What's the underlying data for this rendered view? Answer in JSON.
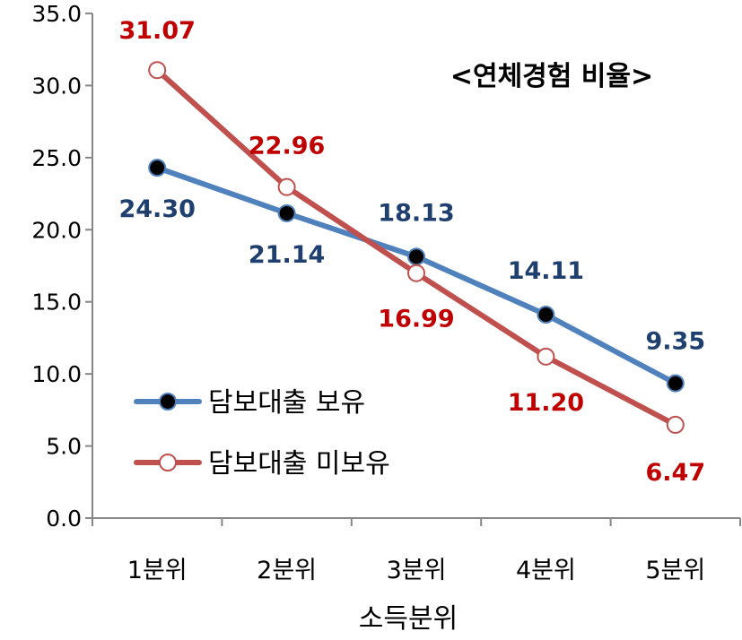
{
  "chart_data": {
    "type": "line",
    "categories": [
      "1분위",
      "2분위",
      "3분위",
      "4분위",
      "5분위"
    ],
    "xlabel": "소득분위",
    "ylabel": "",
    "ylim": [
      0,
      35
    ],
    "y_ticks": [
      "0.0",
      "5.0",
      "10.0",
      "15.0",
      "20.0",
      "25.0",
      "30.0",
      "35.0"
    ],
    "grid": false,
    "annotation": "<연체경험 비율>",
    "legend_position": "bottom-left",
    "series": [
      {
        "name": "담보대출 보유",
        "values": [
          24.3,
          21.14,
          18.13,
          14.11,
          9.35
        ],
        "labels": [
          "24.30",
          "21.14",
          "18.13",
          "14.11",
          "9.35"
        ],
        "color": "#4F81BD",
        "label_color": "#1F3F6E",
        "marker": "filled-black"
      },
      {
        "name": "담보대출 미보유",
        "values": [
          31.07,
          22.96,
          16.99,
          11.2,
          6.47
        ],
        "labels": [
          "31.07",
          "22.96",
          "16.99",
          "11.20",
          "6.47"
        ],
        "color": "#C0504D",
        "label_color": "#C00000",
        "marker": "hollow-white"
      }
    ]
  }
}
